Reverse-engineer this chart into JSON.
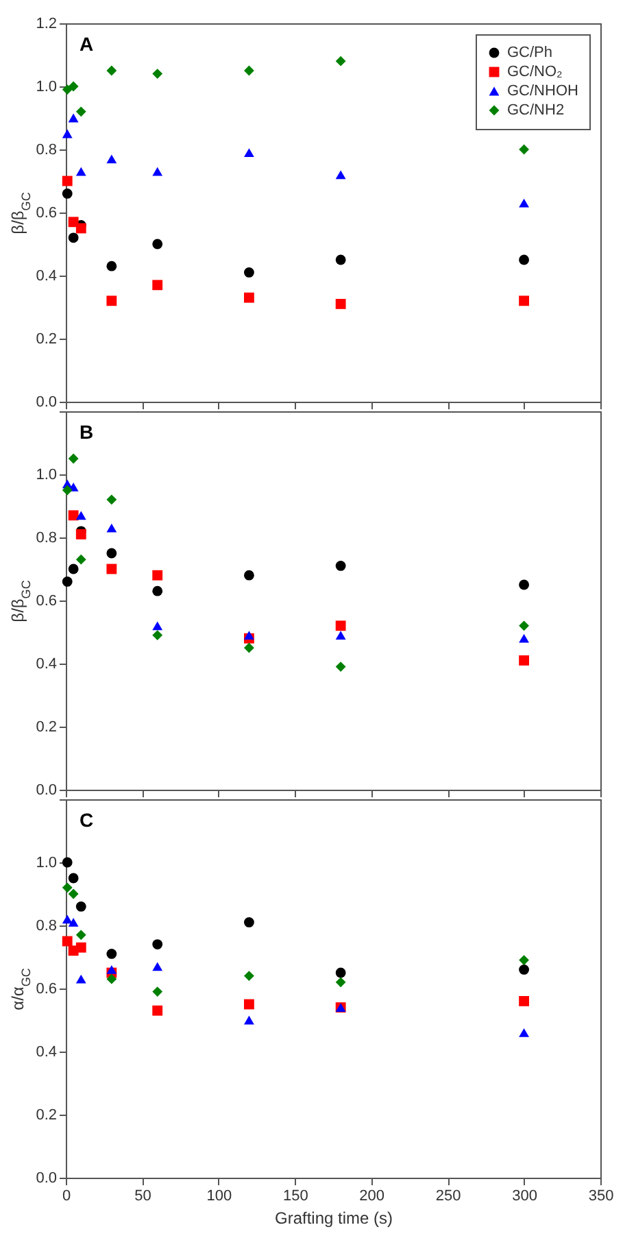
{
  "chart_data": [
    {
      "type": "scatter",
      "annotations": [
        "A"
      ],
      "ylabel": "β/β$_{GC}$",
      "x": [
        1,
        5,
        10,
        30,
        60,
        120,
        180,
        300
      ],
      "xlim": [
        0,
        350
      ],
      "xticks": [
        0,
        50,
        100,
        150,
        200,
        250,
        300,
        350
      ],
      "ylim": [
        0,
        1.2
      ],
      "yticks": [
        {
          "value": 0,
          "label": "0.0"
        },
        {
          "value": 0.2,
          "label": "0.2"
        },
        {
          "value": 0.4,
          "label": "0.4"
        },
        {
          "value": 0.6,
          "label": "0.6"
        },
        {
          "value": 0.8,
          "label": "0.8"
        },
        {
          "value": 1,
          "label": "1.0"
        },
        {
          "value": 1.2,
          "label": "1.2"
        }
      ],
      "tick_labels": "y",
      "grid": false,
      "legend": "top right",
      "series": [
        {
          "name": "GC/Ph",
          "color": "#000000",
          "marker": "circle",
          "values": [
            0.66,
            0.52,
            0.56,
            0.43,
            0.5,
            0.41,
            0.45,
            0.45
          ]
        },
        {
          "name": "GC/NO₂",
          "color": "#ff0000",
          "marker": "square",
          "values": [
            0.7,
            0.57,
            0.55,
            0.32,
            0.37,
            0.33,
            0.31,
            0.32
          ]
        },
        {
          "name": "GC/NHOH",
          "color": "#0000ff",
          "marker": "triangle",
          "values": [
            0.85,
            0.9,
            0.73,
            0.77,
            0.73,
            0.79,
            0.72,
            0.63
          ]
        },
        {
          "name": "GC/NH2",
          "color": "#008000",
          "marker": "diamond",
          "values": [
            0.99,
            1.0,
            0.92,
            1.05,
            1.04,
            1.05,
            1.08,
            0.8
          ]
        }
      ]
    },
    {
      "type": "scatter",
      "annotations": [
        "B"
      ],
      "ylabel": "β/β$_{GC}$",
      "x": [
        1,
        5,
        10,
        30,
        60,
        120,
        180,
        300
      ],
      "xlim": [
        0,
        350
      ],
      "xticks": [
        0,
        50,
        100,
        150,
        200,
        250,
        300,
        350
      ],
      "ylim": [
        0,
        1.2
      ],
      "yticks": [
        {
          "value": 0,
          "label": "0.0"
        },
        {
          "value": 0.2,
          "label": "0.2"
        },
        {
          "value": 0.4,
          "label": "0.4"
        },
        {
          "value": 0.6,
          "label": "0.6"
        },
        {
          "value": 0.8,
          "label": "0.8"
        },
        {
          "value": 1,
          "label": "1.0"
        },
        {
          "value": 1.2,
          "label": null
        }
      ],
      "tick_labels": "y",
      "grid": false,
      "series": [
        {
          "name": "GC/Ph",
          "color": "#000000",
          "marker": "circle",
          "values": [
            0.66,
            0.7,
            0.82,
            0.75,
            0.63,
            0.68,
            0.71,
            0.65
          ]
        },
        {
          "name": "GC/NO₂",
          "color": "#ff0000",
          "marker": "square",
          "values": [
            null,
            0.87,
            0.81,
            0.7,
            0.68,
            0.48,
            0.52,
            0.41
          ]
        },
        {
          "name": "GC/NHOH",
          "color": "#0000ff",
          "marker": "triangle",
          "values": [
            0.97,
            0.96,
            0.87,
            0.83,
            0.52,
            0.49,
            0.49,
            0.48
          ]
        },
        {
          "name": "GC/NH2",
          "color": "#008000",
          "marker": "diamond",
          "values": [
            0.95,
            1.05,
            0.73,
            0.92,
            0.49,
            0.45,
            0.39,
            0.52
          ]
        }
      ]
    },
    {
      "type": "scatter",
      "annotations": [
        "C"
      ],
      "ylabel": "α/α$_{GC}$",
      "xlabel": "Grafting time (s)",
      "x": [
        1,
        5,
        10,
        30,
        60,
        120,
        180,
        300
      ],
      "xlim": [
        0,
        350
      ],
      "xticks": [
        0,
        50,
        100,
        150,
        200,
        250,
        300,
        350
      ],
      "ylim": [
        0,
        1.2
      ],
      "yticks": [
        {
          "value": 0,
          "label": "0.0"
        },
        {
          "value": 0.2,
          "label": "0.2"
        },
        {
          "value": 0.4,
          "label": "0.4"
        },
        {
          "value": 0.6,
          "label": "0.6"
        },
        {
          "value": 0.8,
          "label": "0.8"
        },
        {
          "value": 1,
          "label": "1.0"
        },
        {
          "value": 1.2,
          "label": null
        }
      ],
      "grid": false,
      "series": [
        {
          "name": "GC/Ph",
          "color": "#000000",
          "marker": "circle",
          "values": [
            1.0,
            0.95,
            0.86,
            0.71,
            0.74,
            0.81,
            0.65,
            0.66
          ]
        },
        {
          "name": "GC/NO₂",
          "color": "#ff0000",
          "marker": "square",
          "values": [
            0.75,
            0.72,
            0.73,
            0.65,
            0.53,
            0.55,
            0.54,
            0.56
          ]
        },
        {
          "name": "GC/NHOH",
          "color": "#0000ff",
          "marker": "triangle",
          "values": [
            0.82,
            0.81,
            0.63,
            0.66,
            0.67,
            0.5,
            0.54,
            0.46
          ]
        },
        {
          "name": "GC/NH2",
          "color": "#008000",
          "marker": "diamond",
          "values": [
            0.92,
            0.9,
            0.77,
            0.63,
            0.59,
            0.64,
            0.62,
            0.69
          ]
        }
      ]
    }
  ]
}
